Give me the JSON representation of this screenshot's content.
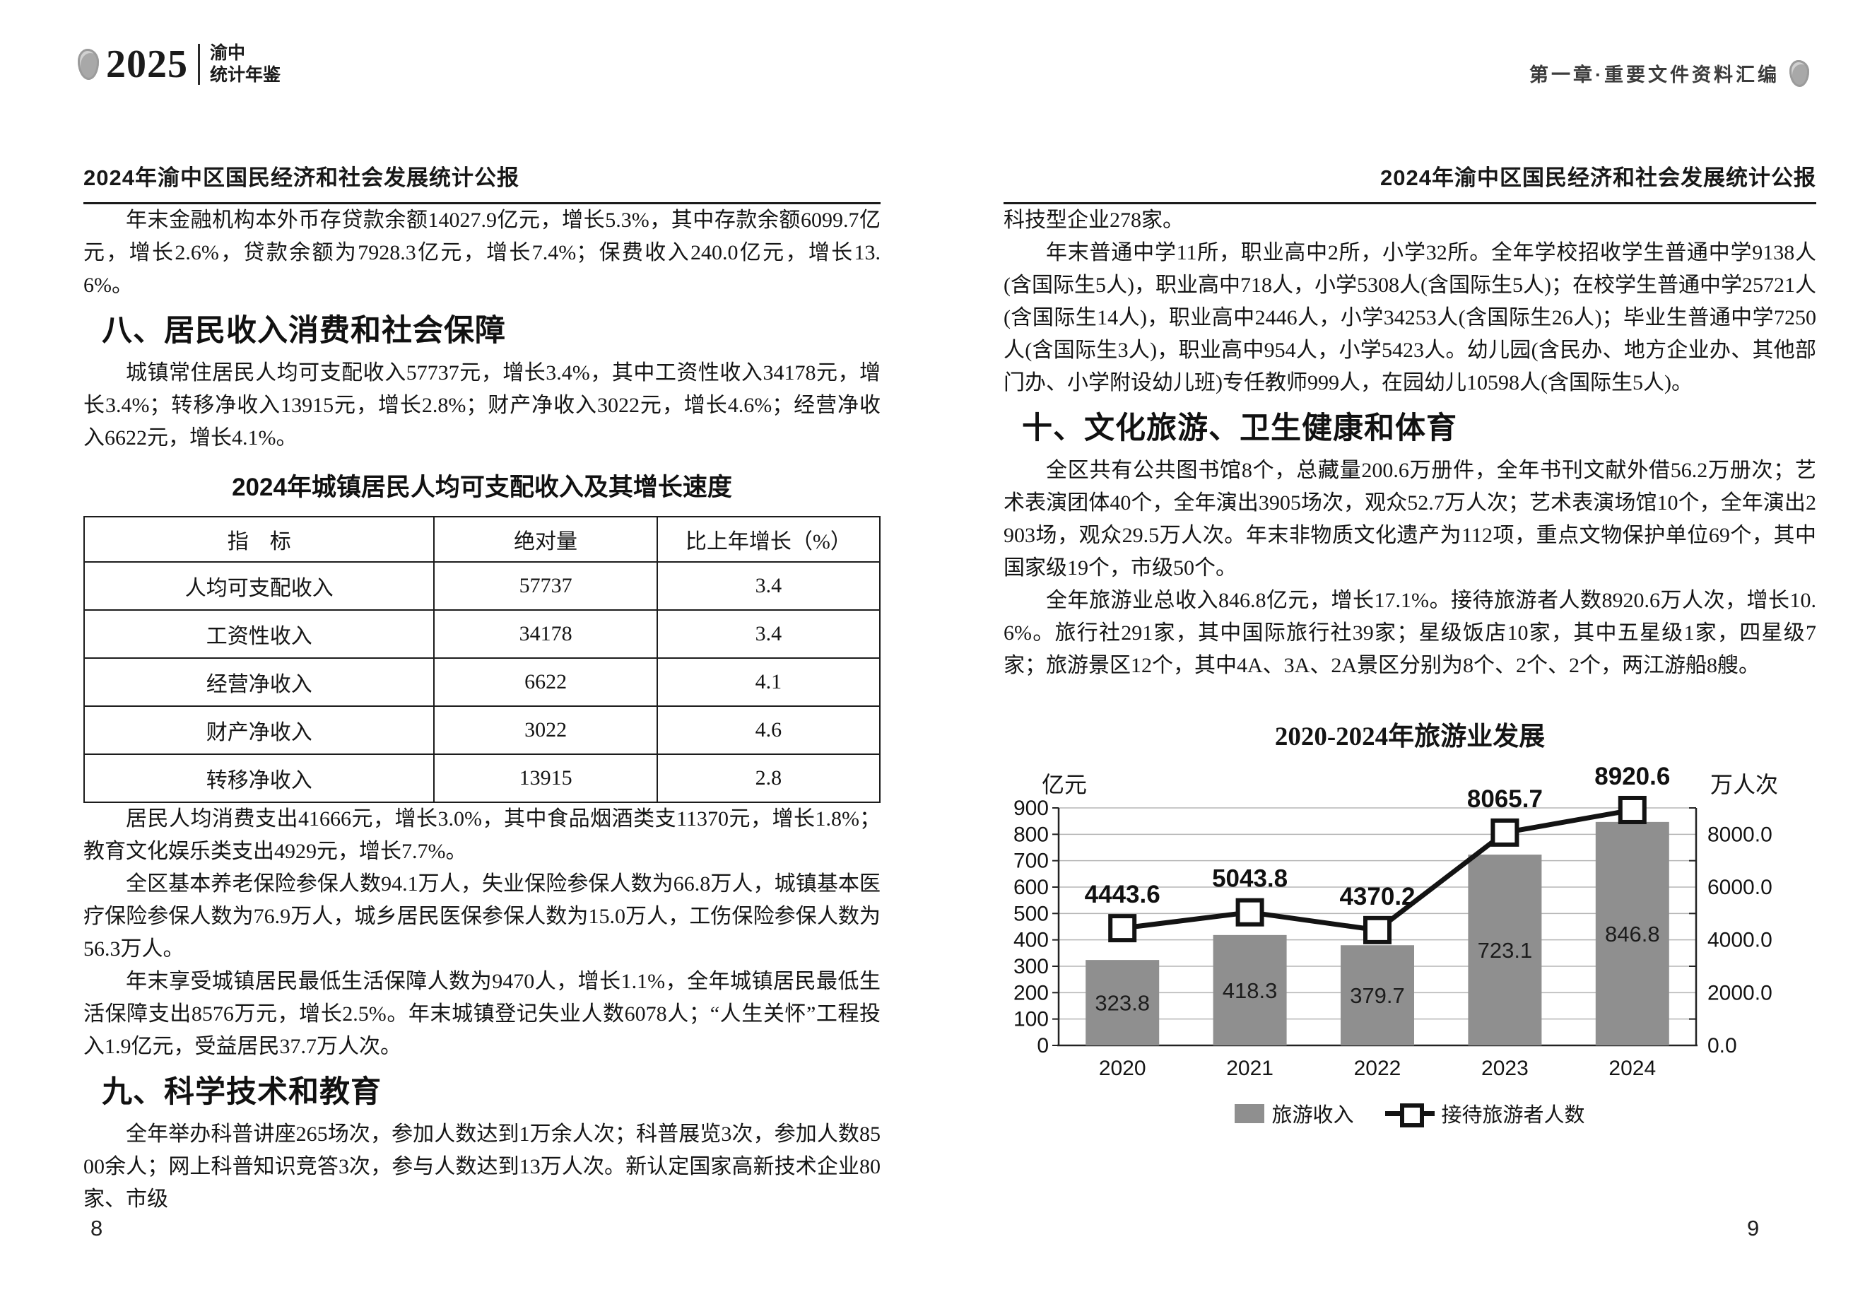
{
  "header": {
    "year": "2025",
    "book_name_line1": "渝中",
    "book_name_line2": "统计年鉴",
    "chapter": "第一章·重要文件资料汇编"
  },
  "left_page": {
    "page_header_title": "2024年渝中区国民经济和社会发展统计公报",
    "para_finance": "年末金融机构本外币存贷款余额14027.9亿元，增长5.3%，其中存款余额6099.7亿元，增长2.6%，贷款余额为7928.3亿元，增长7.4%；保费收入240.0亿元，增长13.6%。",
    "section8_title": "八、居民收入消费和社会保障",
    "para_income": "城镇常住居民人均可支配收入57737元，增长3.4%，其中工资性收入34178元，增长3.4%；转移净收入13915元，增长2.8%；财产净收入3022元，增长4.6%；经营净收入6622元，增长4.1%。",
    "table": {
      "title": "2024年城镇居民人均可支配收入及其增长速度",
      "headers": [
        "指　标",
        "绝对量",
        "比上年增长（%）"
      ],
      "rows": [
        [
          "人均可支配收入",
          "57737",
          "3.4"
        ],
        [
          "工资性收入",
          "34178",
          "3.4"
        ],
        [
          "经营净收入",
          "6622",
          "4.1"
        ],
        [
          "财产净收入",
          "3022",
          "4.6"
        ],
        [
          "转移净收入",
          "13915",
          "2.8"
        ]
      ]
    },
    "para_consumption": "居民人均消费支出41666元，增长3.0%，其中食品烟酒类支11370元，增长1.8%；教育文化娱乐类支出4929元，增长7.7%。",
    "para_insurance": "全区基本养老保险参保人数94.1万人，失业保险参保人数为66.8万人，城镇基本医疗保险参保人数为76.9万人，城乡居民医保参保人数为15.0万人，工伤保险参保人数为56.3万人。",
    "para_welfare": "年末享受城镇居民最低生活保障人数为9470人，增长1.1%，全年城镇居民最低生活保障支出8576万元，增长2.5%。年末城镇登记失业人数6078人；“人生关怀”工程投入1.9亿元，受益居民37.7万人次。",
    "section9_title": "九、科学技术和教育",
    "para_science": "全年举办科普讲座265场次，参加人数达到1万余人次；科普展览3次，参加人数8500余人；网上科普知识竞答3次，参与人数达到13万人次。新认定国家高新技术企业80家、市级",
    "page_number": "8"
  },
  "right_page": {
    "page_header_title": "2024年渝中区国民经济和社会发展统计公报",
    "para_tech_cont": "科技型企业278家。",
    "para_education": "年末普通中学11所，职业高中2所，小学32所。全年学校招收学生普通中学9138人(含国际生5人)，职业高中718人，小学5308人(含国际生5人)；在校学生普通中学25721人(含国际生14人)，职业高中2446人，小学34253人(含国际生26人)；毕业生普通中学7250人(含国际生3人)，职业高中954人，小学5423人。幼儿园(含民办、地方企业办、其他部门办、小学附设幼儿班)专任教师999人，在园幼儿10598人(含国际生5人)。",
    "section10_title": "十、文化旅游、卫生健康和体育",
    "para_culture": "全区共有公共图书馆8个，总藏量200.6万册件，全年书刊文献外借56.2万册次；艺术表演团体40个，全年演出3905场次，观众52.7万人次；艺术表演场馆10个，全年演出2903场，观众29.5万人次。年末非物质文化遗产为112项，重点文物保护单位69个，其中国家级19个，市级50个。",
    "para_tourism": "全年旅游业总收入846.8亿元，增长17.1%。接待旅游者人数8920.6万人次，增长10.6%。旅行社291家，其中国际旅行社39家；星级饭店10家，其中五星级1家，四星级7家；旅游景区12个，其中4A、3A、2A景区分别为8个、2个、2个，两江游船8艘。",
    "page_number": "9"
  },
  "chart_data": {
    "type": "bar",
    "subtype": "bar+line dual axis",
    "title": "2020-2024年旅游业发展",
    "categories": [
      "2020",
      "2021",
      "2022",
      "2023",
      "2024"
    ],
    "series": [
      {
        "name": "旅游收入",
        "type": "bar",
        "axis": "left",
        "values": [
          323.8,
          418.3,
          379.7,
          723.1,
          846.8
        ]
      },
      {
        "name": "接待旅游者人数",
        "type": "line",
        "axis": "right",
        "values": [
          4443.6,
          5043.8,
          4370.2,
          8065.7,
          8920.6
        ]
      }
    ],
    "left_axis": {
      "unit": "亿元",
      "min": 0,
      "max": 900,
      "step": 100
    },
    "right_axis": {
      "unit": "万人次",
      "min": 0,
      "max": 9000,
      "tick_labels": [
        "0.0",
        "2000.0",
        "4000.0",
        "6000.0",
        "8000.0"
      ]
    },
    "bar_color": "#8f8f8f",
    "line_color": "#131313",
    "grid": true,
    "legend_position": "bottom"
  }
}
